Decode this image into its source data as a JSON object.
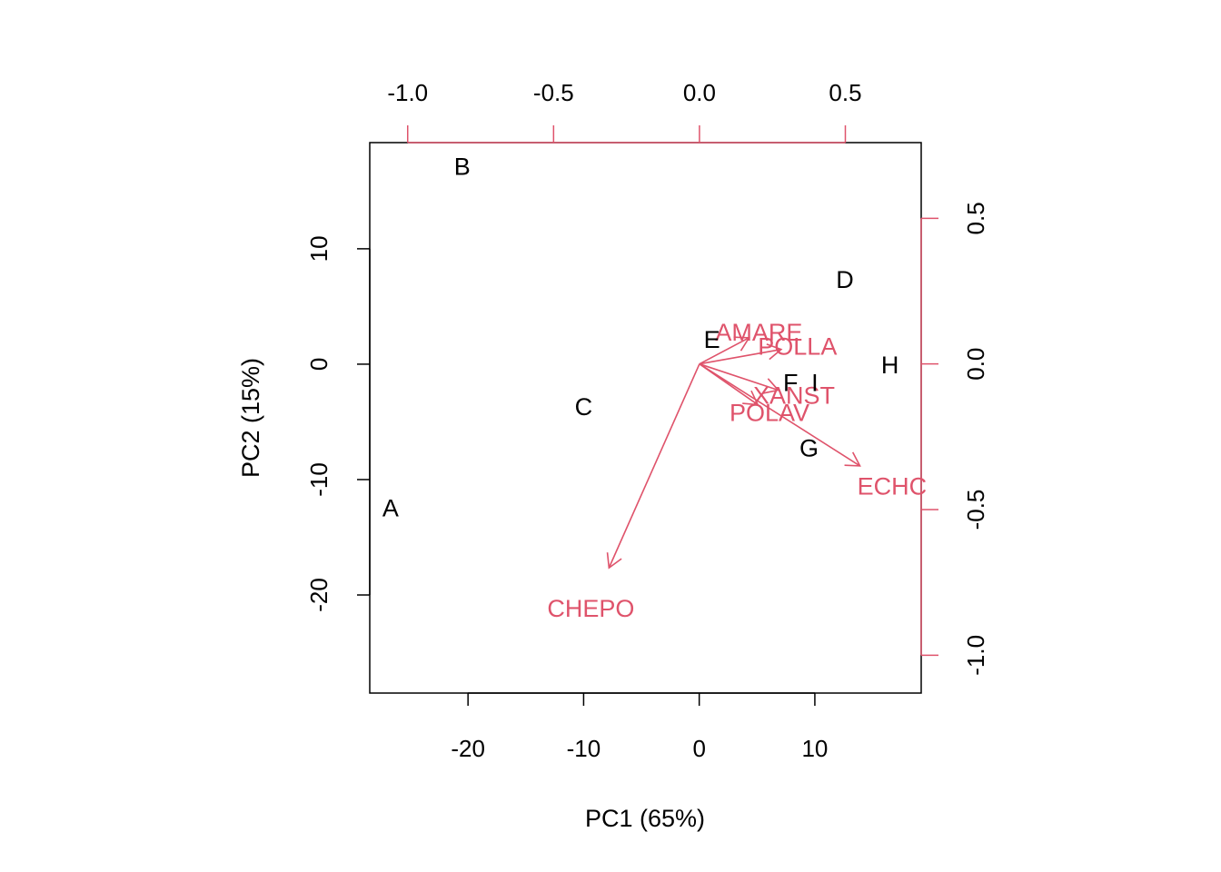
{
  "chart_data": {
    "type": "scatter",
    "subtype": "biplot",
    "title": "",
    "xlabel": "PC1 (65%)",
    "ylabel": "PC2 (15%)",
    "xlim": [
      -28.5,
      19.2
    ],
    "ylim": [
      -28.5,
      19.2
    ],
    "secondary_lim": [
      -1.13,
      0.76
    ],
    "x_ticks": [
      -20,
      -10,
      0,
      10
    ],
    "y_ticks": [
      -20,
      -10,
      0,
      10
    ],
    "top_ticks": [
      -1.0,
      -0.5,
      0.0,
      0.5
    ],
    "right_ticks": [
      -1.0,
      -0.5,
      0.0,
      0.5
    ],
    "x_tick_labels": [
      "-20",
      "-10",
      "0",
      "10"
    ],
    "y_tick_labels": [
      "-20",
      "-10",
      "0",
      "10"
    ],
    "top_tick_labels": [
      "-1.0",
      "-0.5",
      "0.0",
      "0.5"
    ],
    "right_tick_labels": [
      "-1.0",
      "-0.5",
      "0.0",
      "0.5"
    ],
    "grid": false,
    "colors": {
      "observations": "#000000",
      "variables": "#DF536B"
    },
    "observations": [
      {
        "label": "A",
        "x": -26.7,
        "y": -12.5
      },
      {
        "label": "B",
        "x": -20.5,
        "y": 17.1
      },
      {
        "label": "C",
        "x": -10.0,
        "y": -3.7
      },
      {
        "label": "D",
        "x": 12.6,
        "y": 7.3
      },
      {
        "label": "E",
        "x": 1.1,
        "y": 2.1
      },
      {
        "label": "F",
        "x": 7.9,
        "y": -1.6
      },
      {
        "label": "I",
        "x": 10.0,
        "y": -1.6
      },
      {
        "label": "G",
        "x": 9.5,
        "y": -7.3
      },
      {
        "label": "H",
        "x": 16.5,
        "y": -0.1
      }
    ],
    "variables": [
      {
        "label": "AMARE",
        "x": 0.17,
        "y": 0.09
      },
      {
        "label": "POLLA",
        "x": 0.28,
        "y": 0.05
      },
      {
        "label": "XANST",
        "x": 0.27,
        "y": -0.09
      },
      {
        "label": "POLAV",
        "x": 0.2,
        "y": -0.14
      },
      {
        "label": "ECHC",
        "x": 0.55,
        "y": -0.35
      },
      {
        "label": "CHEPO",
        "x": -0.31,
        "y": -0.7
      }
    ]
  }
}
